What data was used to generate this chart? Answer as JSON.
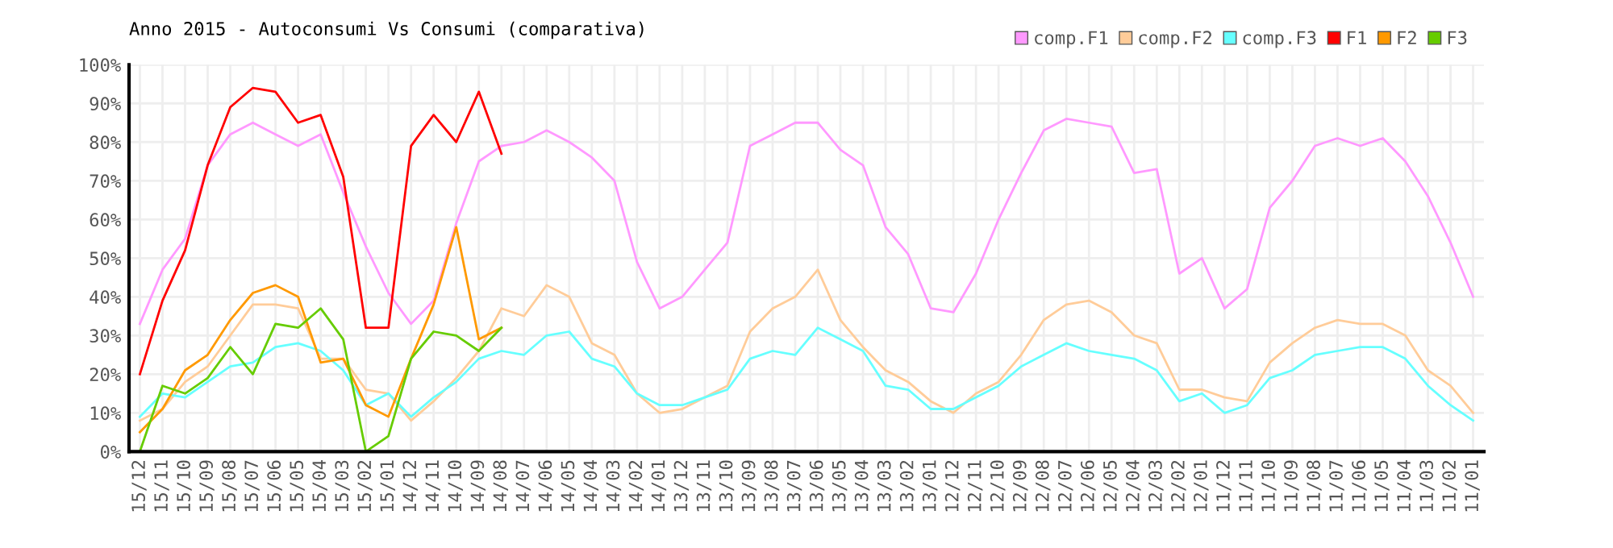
{
  "chart_data": {
    "type": "line",
    "title": "Anno 2015 - Autoconsumi Vs Consumi (comparativa)",
    "categories": [
      "15/12",
      "15/11",
      "15/10",
      "15/09",
      "15/08",
      "15/07",
      "15/06",
      "15/05",
      "15/04",
      "15/03",
      "15/02",
      "15/01",
      "14/12",
      "14/11",
      "14/10",
      "14/09",
      "14/08",
      "14/07",
      "14/06",
      "14/05",
      "14/04",
      "14/03",
      "14/02",
      "14/01",
      "13/12",
      "13/11",
      "13/10",
      "13/09",
      "13/08",
      "13/07",
      "13/06",
      "13/05",
      "13/04",
      "13/03",
      "13/02",
      "13/01",
      "12/12",
      "12/11",
      "12/10",
      "12/09",
      "12/08",
      "12/07",
      "12/06",
      "12/05",
      "12/04",
      "12/03",
      "12/02",
      "12/01",
      "11/12",
      "11/11",
      "11/10",
      "11/09",
      "11/08",
      "11/07",
      "11/06",
      "11/05",
      "11/04",
      "11/03",
      "11/02",
      "11/01"
    ],
    "series": [
      {
        "name": "comp.F1",
        "color": "#ff99ff",
        "values": [
          33,
          47,
          55,
          74,
          82,
          85,
          82,
          79,
          82,
          67,
          53,
          41,
          33,
          39,
          59,
          75,
          79,
          80,
          83,
          80,
          76,
          70,
          49,
          37,
          40,
          47,
          54,
          79,
          82,
          85,
          85,
          78,
          74,
          58,
          51,
          37,
          36,
          46,
          60,
          72,
          83,
          86,
          85,
          84,
          72,
          73,
          46,
          50,
          37,
          42,
          63,
          70,
          79,
          81,
          79,
          81,
          75,
          66,
          54,
          40
        ]
      },
      {
        "name": "comp.F2",
        "color": "#ffcc99",
        "values": [
          8,
          11,
          18,
          22,
          30,
          38,
          38,
          37,
          24,
          24,
          16,
          15,
          8,
          13,
          19,
          26,
          37,
          35,
          43,
          40,
          28,
          25,
          15,
          10,
          11,
          14,
          17,
          31,
          37,
          40,
          47,
          34,
          27,
          21,
          18,
          13,
          10,
          15,
          18,
          25,
          34,
          38,
          39,
          36,
          30,
          28,
          16,
          16,
          14,
          13,
          23,
          28,
          32,
          34,
          33,
          33,
          30,
          21,
          17,
          10
        ]
      },
      {
        "name": "comp.F3",
        "color": "#66ffff",
        "values": [
          9,
          15,
          14,
          18,
          22,
          23,
          27,
          28,
          26,
          21,
          12,
          15,
          9,
          14,
          18,
          24,
          26,
          25,
          30,
          31,
          24,
          22,
          15,
          12,
          12,
          14,
          16,
          24,
          26,
          25,
          32,
          29,
          26,
          17,
          16,
          11,
          11,
          14,
          17,
          22,
          25,
          28,
          26,
          25,
          24,
          21,
          13,
          15,
          10,
          12,
          19,
          21,
          25,
          26,
          27,
          27,
          24,
          17,
          12,
          8
        ]
      },
      {
        "name": "F1",
        "color": "#ff0000",
        "values": [
          20,
          39,
          52,
          74,
          89,
          94,
          93,
          85,
          87,
          71,
          32,
          32,
          79,
          87,
          80,
          93,
          77,
          null,
          null,
          null,
          null,
          null,
          null,
          null,
          null,
          null,
          null,
          null,
          null,
          null,
          null,
          null,
          null,
          null,
          null,
          null,
          null,
          null,
          null,
          null,
          null,
          null,
          null,
          null,
          null,
          null,
          null,
          null,
          null,
          null,
          null,
          null,
          null,
          null,
          null,
          null,
          null,
          null,
          null,
          null
        ]
      },
      {
        "name": "F2",
        "color": "#ff9900",
        "values": [
          5,
          11,
          21,
          25,
          34,
          41,
          43,
          40,
          23,
          24,
          12,
          9,
          24,
          38,
          58,
          29,
          32,
          null,
          null,
          null,
          null,
          null,
          null,
          null,
          null,
          null,
          null,
          null,
          null,
          null,
          null,
          null,
          null,
          null,
          null,
          null,
          null,
          null,
          null,
          null,
          null,
          null,
          null,
          null,
          null,
          null,
          null,
          null,
          null,
          null,
          null,
          null,
          null,
          null,
          null,
          null,
          null,
          null,
          null,
          null
        ]
      },
      {
        "name": "F3",
        "color": "#66cc00",
        "values": [
          0,
          17,
          15,
          19,
          27,
          20,
          33,
          32,
          37,
          29,
          0,
          4,
          24,
          31,
          30,
          26,
          32,
          null,
          null,
          null,
          null,
          null,
          null,
          null,
          null,
          null,
          null,
          null,
          null,
          null,
          null,
          null,
          null,
          null,
          null,
          null,
          null,
          null,
          null,
          null,
          null,
          null,
          null,
          null,
          null,
          null,
          null,
          null,
          null,
          null,
          null,
          null,
          null,
          null,
          null,
          null,
          null,
          null,
          null,
          null
        ]
      }
    ],
    "ylim": [
      0,
      100
    ],
    "yticks": [
      {
        "value": 0,
        "label": "0%"
      },
      {
        "value": 10,
        "label": "10%"
      },
      {
        "value": 20,
        "label": "20%"
      },
      {
        "value": 30,
        "label": "30%"
      },
      {
        "value": 40,
        "label": "40%"
      },
      {
        "value": 50,
        "label": "50%"
      },
      {
        "value": 60,
        "label": "60%"
      },
      {
        "value": 70,
        "label": "70%"
      },
      {
        "value": 80,
        "label": "80%"
      },
      {
        "value": 90,
        "label": "90%"
      },
      {
        "value": 100,
        "label": "100%"
      }
    ],
    "grid": true,
    "legend": "top right",
    "marker": "none",
    "line_style": "solid"
  }
}
